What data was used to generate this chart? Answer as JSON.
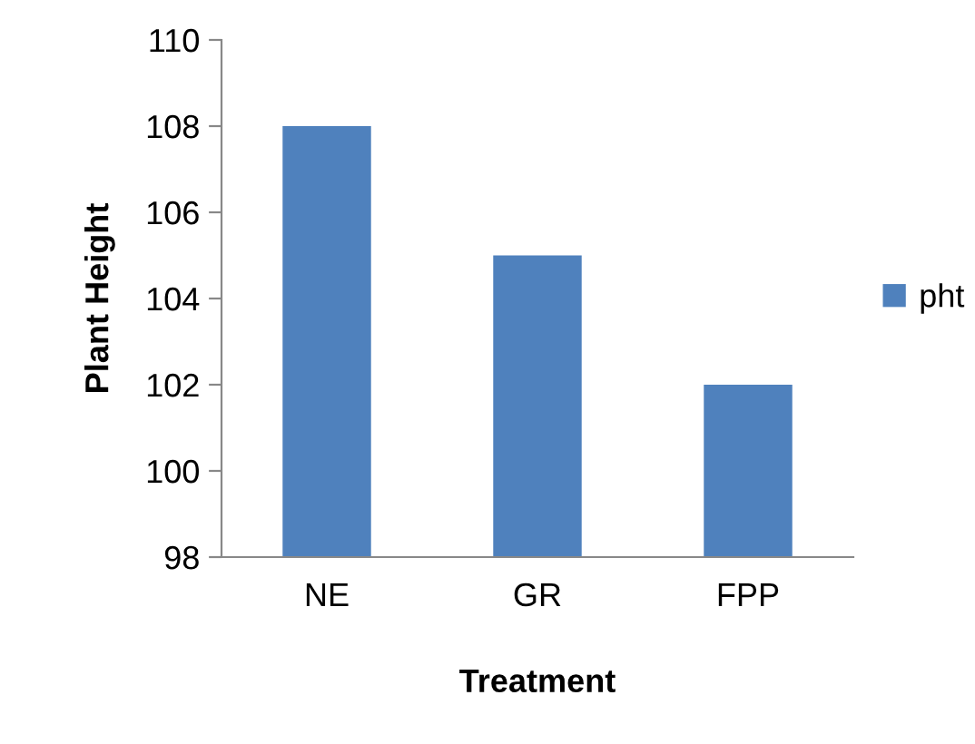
{
  "chart_data": {
    "type": "bar",
    "xlabel": "Treatment",
    "ylabel": "Plant Height",
    "categories": [
      "NE",
      "GR",
      "FPP"
    ],
    "series": [
      {
        "name": "pht",
        "color": "#4f81bd",
        "values": [
          108,
          105,
          102
        ]
      }
    ],
    "ylim": [
      98,
      110
    ],
    "yticks": [
      98,
      100,
      102,
      104,
      106,
      108,
      110
    ],
    "grid": false,
    "legend": "right"
  }
}
